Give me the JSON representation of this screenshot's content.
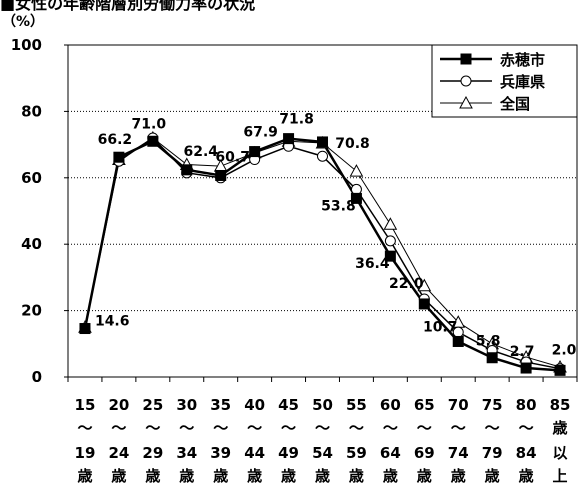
{
  "page": {
    "title": "■女性の年齢階層別労働力率の状況",
    "unit": "（%）"
  },
  "chart_data": {
    "type": "line",
    "title": "女性の年齢階層別労働力率の状況",
    "ylabel": "（%）",
    "ylim": [
      0,
      100
    ],
    "yticks": [
      0,
      20,
      40,
      60,
      80,
      100
    ],
    "grid": "horizontal dotted",
    "legend": "top-right",
    "categories": [
      [
        "15",
        "～",
        "19",
        "歳"
      ],
      [
        "20",
        "～",
        "24",
        "歳"
      ],
      [
        "25",
        "～",
        "29",
        "歳"
      ],
      [
        "30",
        "～",
        "34",
        "歳"
      ],
      [
        "35",
        "～",
        "39",
        "歳"
      ],
      [
        "40",
        "～",
        "44",
        "歳"
      ],
      [
        "45",
        "～",
        "49",
        "歳"
      ],
      [
        "50",
        "～",
        "54",
        "歳"
      ],
      [
        "55",
        "～",
        "59",
        "歳"
      ],
      [
        "60",
        "～",
        "64",
        "歳"
      ],
      [
        "65",
        "～",
        "69",
        "歳"
      ],
      [
        "70",
        "～",
        "74",
        "歳"
      ],
      [
        "75",
        "～",
        "79",
        "歳"
      ],
      [
        "80",
        "～",
        "84",
        "歳"
      ],
      [
        "85",
        "歳",
        "以",
        "上"
      ]
    ],
    "series": [
      {
        "name": "赤穂市",
        "marker": "square-filled",
        "values": [
          14.6,
          66.2,
          71.0,
          62.4,
          60.7,
          67.9,
          71.8,
          70.8,
          53.8,
          36.4,
          22.0,
          10.7,
          5.8,
          2.7,
          2.0
        ]
      },
      {
        "name": "兵庫県",
        "marker": "circle-open",
        "values": [
          14.6,
          65.0,
          72.0,
          61.5,
          60.0,
          65.5,
          69.5,
          66.5,
          56.5,
          41.0,
          23.5,
          13.5,
          8.0,
          4.5,
          2.5
        ]
      },
      {
        "name": "全国",
        "marker": "triangle-open",
        "values": [
          15.0,
          65.5,
          72.0,
          64.0,
          63.5,
          67.5,
          71.0,
          70.5,
          62.0,
          46.0,
          27.5,
          16.5,
          10.0,
          6.0,
          3.0
        ]
      }
    ],
    "data_labels": [
      {
        "series": 0,
        "index": 0,
        "text": "14.6"
      },
      {
        "series": 0,
        "index": 1,
        "text": "66.2"
      },
      {
        "series": 0,
        "index": 2,
        "text": "71.0"
      },
      {
        "series": 0,
        "index": 3,
        "text": "62.4"
      },
      {
        "series": 0,
        "index": 4,
        "text": "60.7"
      },
      {
        "series": 0,
        "index": 5,
        "text": "67.9"
      },
      {
        "series": 0,
        "index": 6,
        "text": "71.8"
      },
      {
        "series": 0,
        "index": 7,
        "text": "70.8"
      },
      {
        "series": 0,
        "index": 8,
        "text": "53.8"
      },
      {
        "series": 0,
        "index": 9,
        "text": "36.4"
      },
      {
        "series": 0,
        "index": 10,
        "text": "22.0"
      },
      {
        "series": 0,
        "index": 11,
        "text": "10.7"
      },
      {
        "series": 0,
        "index": 12,
        "text": "5.8"
      },
      {
        "series": 0,
        "index": 13,
        "text": "2.7"
      },
      {
        "series": 0,
        "index": 14,
        "text": "2.0"
      }
    ]
  }
}
